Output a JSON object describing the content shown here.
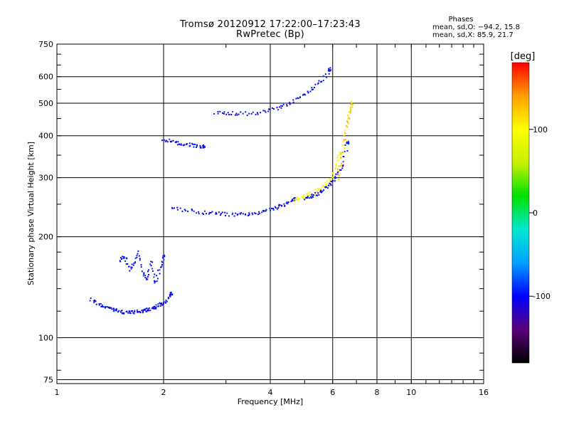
{
  "title_line1": "Tromsø 20120912 17:22:00–17:23:43",
  "title_line2": "RwPretec (Bp)",
  "stats": {
    "heading": "Phases",
    "o_mode": "mean, sd,O: −94.2, 15.8",
    "x_mode": "mean, sd,X:  85.9, 21.7"
  },
  "chart_data": {
    "type": "scatter",
    "title": "Tromsø 20120912 17:22:00–17:23:43",
    "subtitle": "RwPretec (Bp)",
    "xlabel": "Frequency [MHz]",
    "ylabel": "Stationary phase Virtual Height [km]",
    "xscale": "log",
    "yscale": "log",
    "xlim": [
      1,
      16
    ],
    "ylim": [
      73,
      750
    ],
    "x_ticks": [
      1,
      2,
      4,
      6,
      8,
      10,
      16
    ],
    "x_tick_labels": [
      "1",
      "2",
      "4",
      "6",
      "8",
      "10",
      "16"
    ],
    "y_ticks": [
      75,
      100,
      200,
      300,
      400,
      500,
      600,
      750
    ],
    "y_tick_labels": [
      "75",
      "100",
      "200",
      "300",
      "400",
      "500",
      "600",
      "750"
    ],
    "grid": true,
    "colorbar": {
      "label": "[deg]",
      "range": [
        -180,
        180
      ],
      "ticks": [
        -100,
        0,
        100
      ],
      "tick_labels": [
        "-100",
        "0",
        "100"
      ],
      "colors": [
        "#000000",
        "#5a007a",
        "#0000ff",
        "#00a0ff",
        "#00e8d0",
        "#00e000",
        "#c8f000",
        "#ffff00",
        "#ffa000",
        "#ff0000"
      ]
    },
    "series": [
      {
        "x": [
          1.25,
          1.3,
          1.35,
          1.4,
          1.45,
          1.5,
          1.55,
          1.6,
          1.65,
          1.7,
          1.75,
          1.8,
          1.85,
          1.9,
          1.95,
          2.0,
          2.05,
          2.1
        ],
        "y": [
          130,
          127,
          124,
          122,
          121,
          120,
          119,
          119,
          119,
          120,
          120,
          121,
          122,
          123,
          125,
          127,
          130,
          135
        ],
        "phase_deg": -100
      },
      {
        "x": [
          2.1,
          2.3,
          2.5,
          2.7,
          2.9,
          3.1,
          3.3,
          3.5,
          3.7,
          3.9,
          4.1,
          4.3,
          4.5,
          4.7
        ],
        "y": [
          245,
          240,
          237,
          235,
          234,
          233,
          233,
          234,
          236,
          239,
          243,
          248,
          253,
          258
        ],
        "phase_deg": -100
      },
      {
        "x": [
          4.7,
          4.9,
          5.1,
          5.3,
          5.5,
          5.7,
          5.9,
          6.1,
          6.3
        ],
        "y": [
          258,
          262,
          266,
          271,
          277,
          285,
          297,
          318,
          355
        ],
        "phase_deg": 100
      },
      {
        "x": [
          5.0,
          5.2,
          5.4,
          5.6,
          5.8,
          6.0,
          6.2,
          6.4,
          6.6
        ],
        "y": [
          258,
          263,
          268,
          274,
          282,
          292,
          306,
          330,
          380
        ],
        "phase_deg": -100
      },
      {
        "x": [
          6.2,
          6.3,
          6.4,
          6.5,
          6.6,
          6.7,
          6.8
        ],
        "y": [
          300,
          330,
          360,
          400,
          440,
          470,
          500
        ],
        "phase_deg": 120
      },
      {
        "x": [
          2.8,
          3.0,
          3.2,
          3.5,
          3.8,
          4.1,
          4.4,
          4.7,
          5.0,
          5.3,
          5.6,
          5.9
        ],
        "y": [
          470,
          468,
          466,
          465,
          470,
          480,
          490,
          510,
          530,
          555,
          585,
          630
        ],
        "phase_deg": -100
      },
      {
        "x": [
          2.0,
          2.1,
          2.2,
          2.3,
          2.4,
          2.5,
          2.6
        ],
        "y": [
          390,
          385,
          380,
          378,
          375,
          372,
          370
        ],
        "phase_deg": -100
      },
      {
        "x": [
          1.5,
          1.55,
          1.6,
          1.65,
          1.7,
          1.75,
          1.8,
          1.85,
          1.9,
          1.95,
          2.0
        ],
        "y": [
          170,
          175,
          160,
          165,
          180,
          155,
          150,
          170,
          145,
          160,
          175
        ],
        "phase_deg": -100
      }
    ]
  }
}
